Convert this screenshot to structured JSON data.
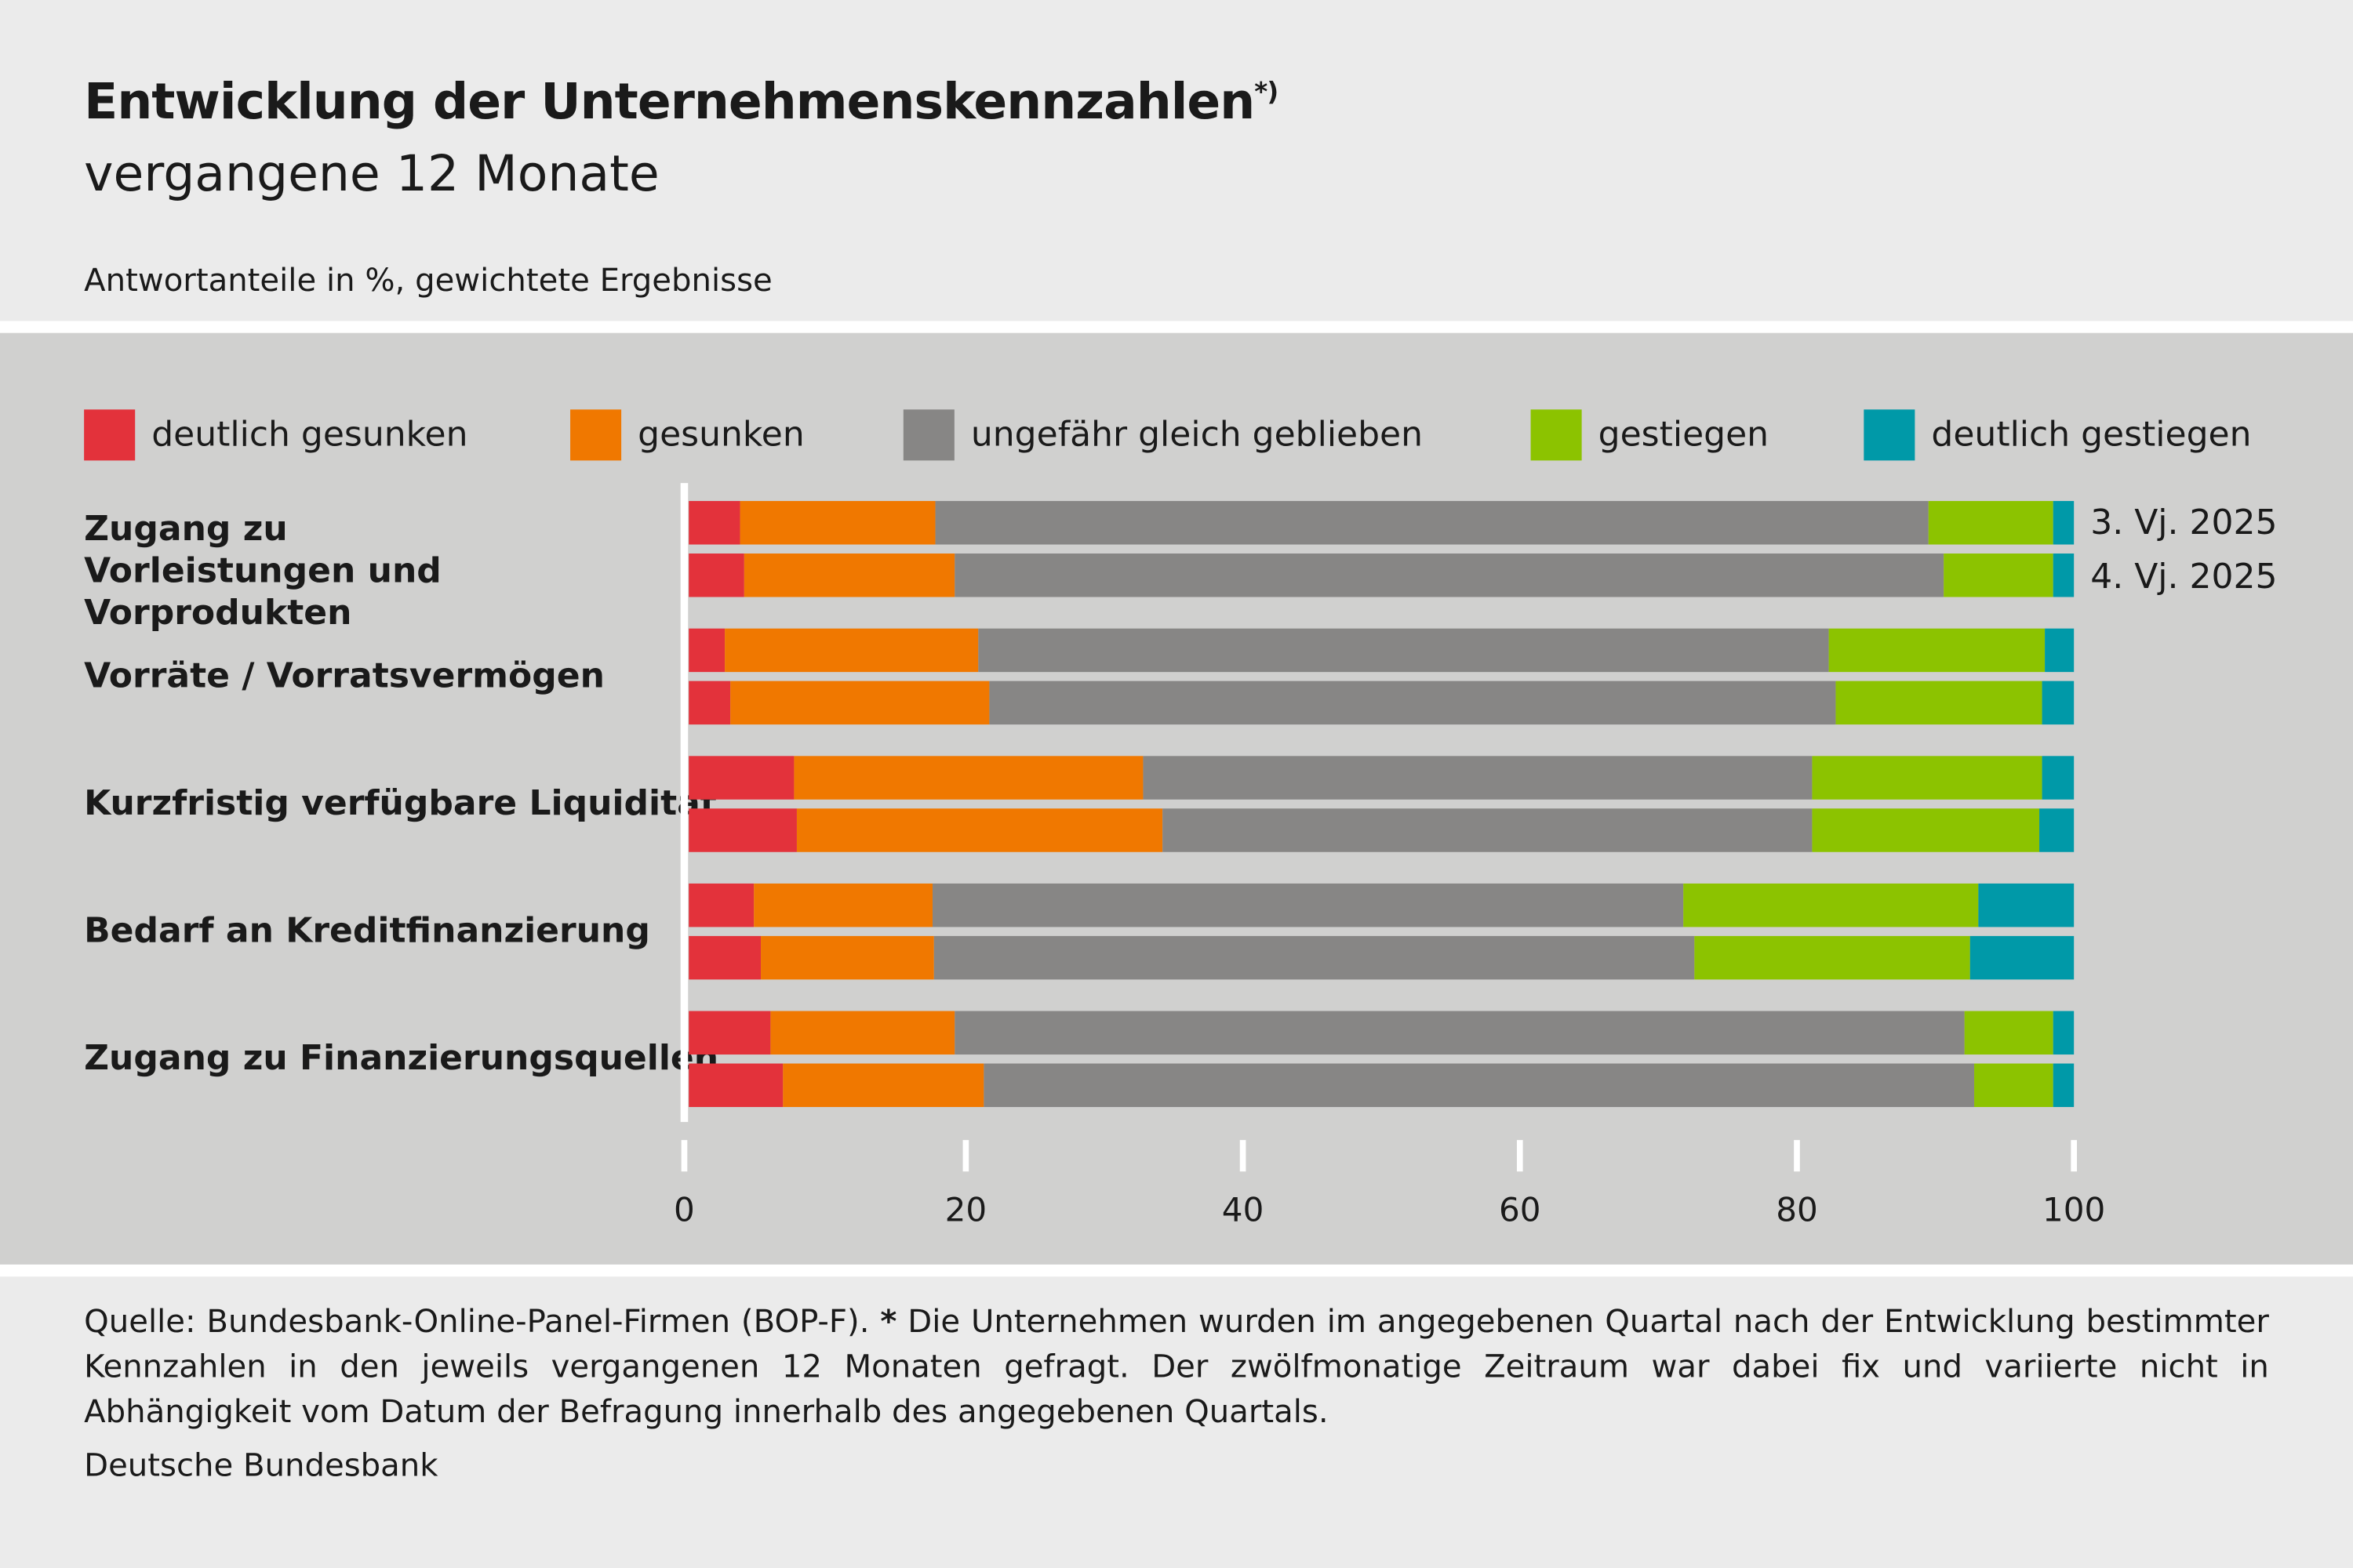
{
  "header": {
    "title": "Entwicklung der Unternehmenskennzahlen",
    "title_mark": "*)",
    "subtitle": "vergangene 12 Monate",
    "unit_note": "Antwortanteile in %, gewichtete Ergebnisse"
  },
  "footer": {
    "source": "Quelle: Bundesbank-Online-Panel-Firmen (BOP-F).",
    "star": "*",
    "note": "Die Unternehmen wurden im angegebenen Quartal nach der Entwicklung bestimmter Kennzahlen in den jeweils vergangenen 12 Monaten gefragt. Der zwölfmonatige Zeitraum war dabei fix und variierte nicht in Abhängigkeit vom Datum der Befragung innerhalb des angegebenen Quartals.",
    "organization": "Deutsche Bundesbank"
  },
  "chart_data": {
    "type": "bar",
    "orientation": "horizontal",
    "stacked": true,
    "xlim": [
      0,
      100
    ],
    "xticks": [
      "0",
      "20",
      "40",
      "60",
      "80",
      "100"
    ],
    "grid": false,
    "legend_position": "top",
    "categories": [
      "Zugang zu Vorleistungen und Vorprodukten",
      "Vorräte / Vorratsvermögen",
      "Kurzfristig verfügbare Liquidität",
      "Bedarf an Kreditfinanzierung",
      "Zugang zu Finanzierungsquellen"
    ],
    "periods": [
      "3. Vj. 2025",
      "4. Vj. 2025"
    ],
    "series": [
      {
        "name": "deutlich gesunken",
        "color": "#e3323b",
        "values": [
          [
            3.7,
            4.0
          ],
          [
            2.6,
            3.0
          ],
          [
            7.6,
            7.8
          ],
          [
            4.7,
            5.2
          ],
          [
            5.9,
            6.8
          ]
        ]
      },
      {
        "name": "gesunken",
        "color": "#f07800",
        "values": [
          [
            14.1,
            15.2
          ],
          [
            18.3,
            18.7
          ],
          [
            25.2,
            26.4
          ],
          [
            12.9,
            12.5
          ],
          [
            13.3,
            14.5
          ]
        ]
      },
      {
        "name": "ungefähr gleich geblieben",
        "color": "#878685",
        "values": [
          [
            71.7,
            71.4
          ],
          [
            61.4,
            61.1
          ],
          [
            48.3,
            46.9
          ],
          [
            54.2,
            54.9
          ],
          [
            72.9,
            71.5
          ]
        ]
      },
      {
        "name": "gestiegen",
        "color": "#8cc300",
        "values": [
          [
            9.0,
            7.9
          ],
          [
            15.6,
            14.9
          ],
          [
            16.6,
            16.4
          ],
          [
            21.3,
            19.9
          ],
          [
            6.4,
            5.7
          ]
        ]
      },
      {
        "name": "deutlich gestiegen",
        "color": "#0099a8",
        "values": [
          [
            1.5,
            1.5
          ],
          [
            2.1,
            2.3
          ],
          [
            2.3,
            2.5
          ],
          [
            6.9,
            7.5
          ],
          [
            1.5,
            1.5
          ]
        ]
      }
    ]
  }
}
